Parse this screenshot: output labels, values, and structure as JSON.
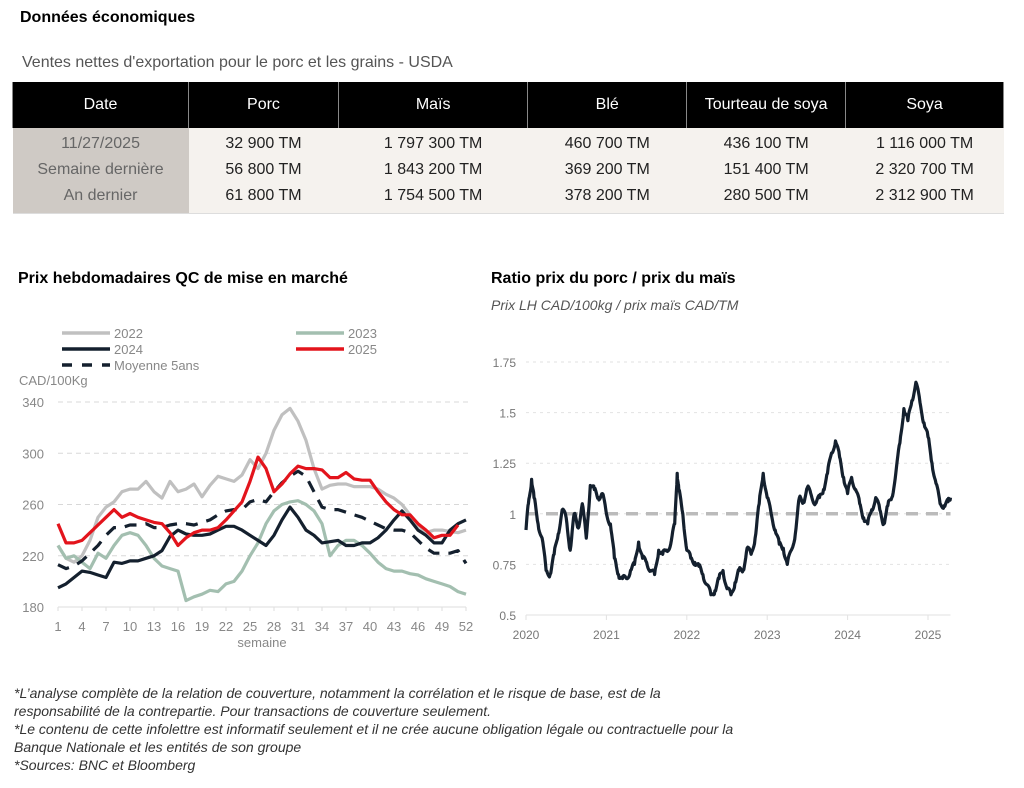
{
  "header": {
    "title": "Données économiques",
    "table_caption": "Ventes nettes d'exportation pour le porc et les grains - USDA"
  },
  "export_table": {
    "columns": [
      "Date",
      "Porc",
      "Maïs",
      "Blé",
      "Tourteau de soya",
      "Soya"
    ],
    "rows": [
      [
        "11/27/2025",
        "32 900 TM",
        "1 797 300 TM",
        "460 700 TM",
        "436 100 TM",
        "1 116 000 TM"
      ],
      [
        "Semaine dernière",
        "56 800 TM",
        "1 843 200 TM",
        "369 200 TM",
        "151 400 TM",
        "2 320 700 TM"
      ],
      [
        "An dernier",
        "61 800 TM",
        "1 754 500 TM",
        "378 200 TM",
        "280 500 TM",
        "2 312 900 TM"
      ]
    ],
    "colors": {
      "header_bg": "#000000",
      "date_col_bg": "#cfcac5",
      "body_bg": "#f5f2ee"
    }
  },
  "chart_data": [
    {
      "type": "line",
      "title": "Prix hebdomadaires QC de mise en marché",
      "xlabel": "semaine",
      "ylabel": "CAD/100Kg",
      "ylim": [
        180,
        340
      ],
      "xlim": [
        1,
        52
      ],
      "yticks": [
        "180",
        "220",
        "260",
        "300",
        "340"
      ],
      "xticks": [
        "1",
        "4",
        "7",
        "10",
        "13",
        "16",
        "19",
        "22",
        "25",
        "28",
        "31",
        "34",
        "37",
        "40",
        "43",
        "46",
        "49",
        "52"
      ],
      "grid": true,
      "legend_position": "top",
      "x": [
        1,
        2,
        3,
        4,
        5,
        6,
        7,
        8,
        9,
        10,
        11,
        12,
        13,
        14,
        15,
        16,
        17,
        18,
        19,
        20,
        21,
        22,
        23,
        24,
        25,
        26,
        27,
        28,
        29,
        30,
        31,
        32,
        33,
        34,
        35,
        36,
        37,
        38,
        39,
        40,
        41,
        42,
        43,
        44,
        45,
        46,
        47,
        48,
        49,
        50,
        51,
        52
      ],
      "series": [
        {
          "name": "2022",
          "color": "#c0c0c0",
          "style": "solid",
          "values": [
            228,
            218,
            215,
            220,
            232,
            250,
            258,
            262,
            270,
            272,
            272,
            278,
            270,
            265,
            278,
            270,
            272,
            276,
            266,
            275,
            282,
            280,
            278,
            283,
            295,
            288,
            300,
            318,
            330,
            335,
            325,
            310,
            288,
            272,
            275,
            276,
            276,
            274,
            274,
            274,
            272,
            268,
            265,
            260,
            252,
            244,
            238,
            240,
            240,
            239,
            238,
            240
          ]
        },
        {
          "name": "2023",
          "color": "#a3bfb0",
          "style": "solid",
          "values": [
            228,
            218,
            220,
            215,
            210,
            222,
            218,
            228,
            236,
            238,
            236,
            228,
            218,
            212,
            210,
            208,
            185,
            188,
            190,
            193,
            192,
            198,
            200,
            208,
            220,
            230,
            245,
            255,
            260,
            262,
            263,
            260,
            255,
            245,
            220,
            228,
            232,
            232,
            228,
            222,
            215,
            210,
            208,
            208,
            206,
            205,
            202,
            200,
            198,
            196,
            192,
            190
          ]
        },
        {
          "name": "2024",
          "color": "#14202e",
          "style": "solid",
          "values": [
            195,
            198,
            203,
            208,
            207,
            205,
            203,
            215,
            214,
            216,
            216,
            218,
            220,
            224,
            235,
            240,
            237,
            236,
            236,
            237,
            240,
            243,
            243,
            240,
            236,
            232,
            228,
            236,
            248,
            258,
            250,
            240,
            236,
            230,
            231,
            232,
            228,
            228,
            230,
            230,
            234,
            240,
            248,
            255,
            248,
            240,
            236,
            230,
            230,
            240,
            245,
            248
          ]
        },
        {
          "name": "2025",
          "color": "#e3141c",
          "style": "solid",
          "values": [
            245,
            230,
            230,
            232,
            238,
            244,
            250,
            256,
            250,
            253,
            250,
            248,
            246,
            245,
            238,
            228,
            234,
            238,
            240,
            240,
            242,
            248,
            255,
            262,
            278,
            297,
            288,
            270,
            276,
            284,
            290,
            288,
            288,
            287,
            281,
            281,
            285,
            280,
            279,
            279,
            270,
            262,
            256,
            252,
            252,
            245,
            240,
            234,
            236,
            236,
            244,
            null
          ]
        },
        {
          "name": "Moyenne 5ans",
          "color": "#14202e",
          "style": "dashed",
          "values": [
            213,
            210,
            212,
            216,
            222,
            228,
            236,
            242,
            242,
            244,
            244,
            245,
            242,
            242,
            244,
            245,
            245,
            244,
            246,
            248,
            252,
            255,
            256,
            256,
            262,
            264,
            262,
            270,
            277,
            282,
            286,
            282,
            270,
            258,
            256,
            256,
            254,
            252,
            250,
            247,
            244,
            241,
            240,
            240,
            238,
            232,
            226,
            222,
            222,
            222,
            224,
            214
          ]
        }
      ]
    },
    {
      "type": "line",
      "title": "Ratio prix du porc / prix du maïs",
      "subtitle": "Prix LH CAD/100kg / prix maïs CAD/TM",
      "xlabel": "",
      "ylabel": "",
      "ylim": [
        0.5,
        1.75
      ],
      "xlim": [
        2020,
        2025.28
      ],
      "yticks": [
        "0.5",
        "0.75",
        "1",
        "1.25",
        "1.5",
        "1.75"
      ],
      "xticks": [
        "2020",
        "2021",
        "2022",
        "2023",
        "2024",
        "2025"
      ],
      "grid": true,
      "reference_line": {
        "value": 1,
        "color": "#bbbbbb",
        "style": "dashed"
      },
      "series": [
        {
          "name": "Ratio",
          "color": "#14202e",
          "x": [
            2020.0,
            2020.03,
            2020.07,
            2020.1,
            2020.15,
            2020.2,
            2020.25,
            2020.3,
            2020.35,
            2020.4,
            2020.45,
            2020.5,
            2020.55,
            2020.6,
            2020.65,
            2020.7,
            2020.75,
            2020.8,
            2020.85,
            2020.9,
            2020.95,
            2021.0,
            2021.05,
            2021.1,
            2021.15,
            2021.2,
            2021.25,
            2021.3,
            2021.35,
            2021.4,
            2021.45,
            2021.5,
            2021.55,
            2021.6,
            2021.65,
            2021.7,
            2021.75,
            2021.8,
            2021.85,
            2021.88,
            2021.9,
            2021.95,
            2022.0,
            2022.05,
            2022.1,
            2022.15,
            2022.2,
            2022.25,
            2022.3,
            2022.35,
            2022.4,
            2022.45,
            2022.5,
            2022.55,
            2022.6,
            2022.65,
            2022.7,
            2022.75,
            2022.8,
            2022.85,
            2022.9,
            2022.95,
            2023.0,
            2023.05,
            2023.1,
            2023.15,
            2023.2,
            2023.25,
            2023.3,
            2023.35,
            2023.4,
            2023.45,
            2023.5,
            2023.55,
            2023.6,
            2023.65,
            2023.7,
            2023.75,
            2023.8,
            2023.85,
            2023.9,
            2023.95,
            2024.0,
            2024.05,
            2024.1,
            2024.15,
            2024.2,
            2024.25,
            2024.3,
            2024.35,
            2024.4,
            2024.45,
            2024.5,
            2024.55,
            2024.6,
            2024.65,
            2024.7,
            2024.75,
            2024.8,
            2024.85,
            2024.9,
            2024.95,
            2025.0,
            2025.05,
            2025.1,
            2025.15,
            2025.2,
            2025.25,
            2025.28
          ],
          "values": [
            0.92,
            1.05,
            1.17,
            1.08,
            0.95,
            0.88,
            0.72,
            0.7,
            0.8,
            0.9,
            1.02,
            0.98,
            0.82,
            1.0,
            0.93,
            1.05,
            0.88,
            1.14,
            1.12,
            1.08,
            1.1,
            1.0,
            0.95,
            0.78,
            0.7,
            0.68,
            0.68,
            0.72,
            0.75,
            0.86,
            0.78,
            0.76,
            0.72,
            0.7,
            0.82,
            0.8,
            0.82,
            0.85,
            0.95,
            1.2,
            1.12,
            1.0,
            0.82,
            0.78,
            0.76,
            0.74,
            0.7,
            0.65,
            0.6,
            0.62,
            0.68,
            0.72,
            0.63,
            0.6,
            0.66,
            0.72,
            0.72,
            0.83,
            0.8,
            0.88,
            1.05,
            1.2,
            1.08,
            1.0,
            0.92,
            0.85,
            0.83,
            0.75,
            0.82,
            0.9,
            1.08,
            1.06,
            1.13,
            1.09,
            1.05,
            1.08,
            1.12,
            1.2,
            1.3,
            1.36,
            1.28,
            1.18,
            1.1,
            1.18,
            1.12,
            1.05,
            0.98,
            0.95,
            1.02,
            1.08,
            1.02,
            0.95,
            1.04,
            1.08,
            1.2,
            1.35,
            1.52,
            1.46,
            1.56,
            1.65,
            1.55,
            1.45,
            1.38,
            1.25,
            1.15,
            1.05,
            1.04,
            1.06,
            1.08
          ]
        }
      ]
    }
  ],
  "left_chart_legend": [
    "2022",
    "2023",
    "2024",
    "2025",
    "Moyenne 5ans"
  ],
  "footnotes": [
    "*L’analyse complète de la relation de couverture, notamment la corrélation et le risque de base, est de la",
    "responsabilité de la contrepartie. Pour transactions de couverture seulement.",
    "*Le contenu de cette infolettre est informatif seulement et il ne crée aucune obligation légale ou contractuelle pour la",
    "Banque Nationale et les entités de son groupe",
    "*Sources: BNC et Bloomberg"
  ]
}
